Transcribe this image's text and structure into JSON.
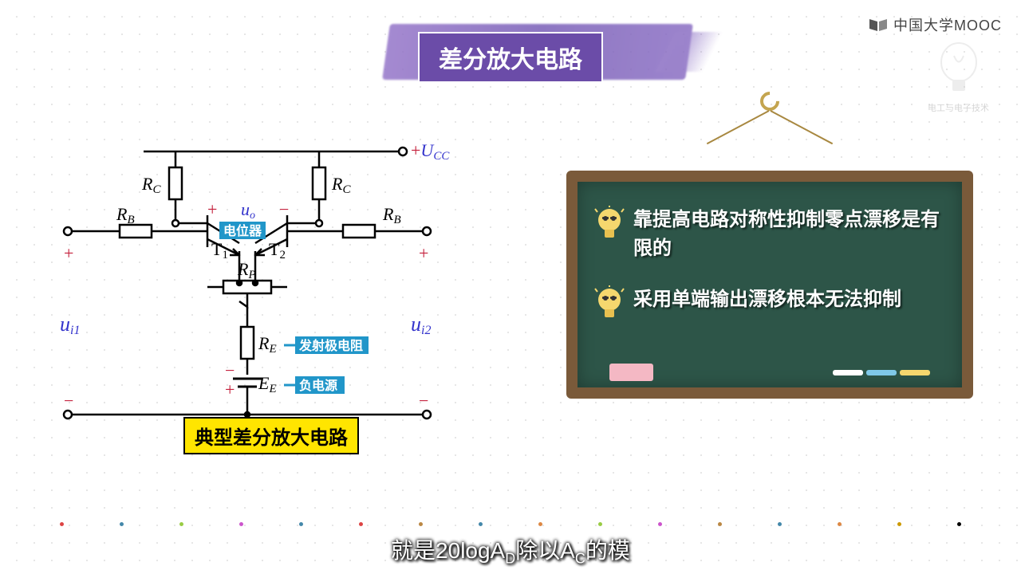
{
  "logo": {
    "text": "中国大学MOOC"
  },
  "watermark": {
    "sub_text": "电工与电子技术"
  },
  "title": "差分放大电路",
  "circuit": {
    "caption": "典型差分放大电路",
    "supply": {
      "plus": "+",
      "label": "U",
      "sub": "CC",
      "color": "#c41e3a"
    },
    "labels": {
      "RC1": {
        "t": "R",
        "s": "C"
      },
      "RC2": {
        "t": "R",
        "s": "C"
      },
      "RB1": {
        "t": "R",
        "s": "B"
      },
      "RB2": {
        "t": "R",
        "s": "B"
      },
      "T1": {
        "t": "T",
        "s": "1"
      },
      "T2": {
        "t": "T",
        "s": "2"
      },
      "RP": {
        "t": "R",
        "s": "P"
      },
      "RE": {
        "t": "R",
        "s": "E"
      },
      "EE": {
        "t": "E",
        "s": "E"
      },
      "uo": {
        "t": "u",
        "s": "o"
      },
      "ui1": {
        "t": "u",
        "s": "i1"
      },
      "ui2": {
        "t": "u",
        "s": "i2"
      }
    },
    "tags": {
      "potentiometer": "电位器",
      "emitter_r": "发射极电阻",
      "neg_supply": "负电源"
    },
    "polarity": {
      "plus": "+",
      "minus": "−"
    },
    "stroke": "#000000",
    "voltage_color": "#3333cc",
    "pm_color": "#c41e3a"
  },
  "board": {
    "notes": [
      "靠提高电路对称性抑制零点漂移是有限的",
      "采用单端输出漂移根本无法抑制"
    ],
    "bg": "#2d5548",
    "frame": "#7a5a3a",
    "chalk_colors": [
      "#ffffff",
      "#7fc8e8",
      "#f5d76e"
    ]
  },
  "progress_colors": [
    "#d44",
    "#48a",
    "#9c4",
    "#c5c",
    "#48a",
    "#d44",
    "#b84",
    "#48a",
    "#d84",
    "#9c4",
    "#c5c",
    "#b84",
    "#48a",
    "#d84",
    "#c90",
    "#000"
  ],
  "subtitle": {
    "pre": "就是20logA",
    "sub1": "D",
    "mid": "除以A",
    "sub2": "C",
    "post": "的模"
  }
}
